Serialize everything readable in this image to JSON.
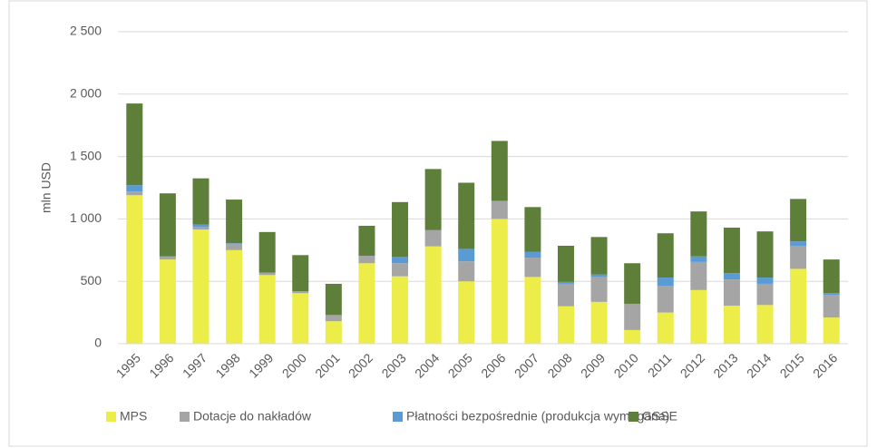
{
  "chart_data": {
    "type": "stacked_bar",
    "y_label": "mln USD",
    "categories": [
      "1995",
      "1996",
      "1997",
      "1998",
      "1999",
      "2000",
      "2001",
      "2002",
      "2003",
      "2004",
      "2005",
      "2006",
      "2007",
      "2008",
      "2009",
      "2010",
      "2011",
      "2012",
      "2013",
      "2014",
      "2015",
      "2016"
    ],
    "series": [
      {
        "name": "MPS",
        "color": "#eded4a",
        "values": [
          1190,
          675,
          915,
          750,
          550,
          405,
          180,
          645,
          540,
          780,
          500,
          1000,
          535,
          300,
          335,
          110,
          250,
          430,
          305,
          310,
          600,
          210
        ]
      },
      {
        "name": "Dotacje do nakładów",
        "color": "#a5a5a5",
        "values": [
          30,
          20,
          20,
          50,
          20,
          15,
          50,
          60,
          105,
          130,
          160,
          145,
          155,
          180,
          200,
          210,
          215,
          225,
          210,
          170,
          185,
          180
        ]
      },
      {
        "name": "Płatności bezpośrednie (produkcja wymagana)",
        "color": "#5b9bd5",
        "values": [
          50,
          5,
          20,
          5,
          0,
          0,
          0,
          0,
          50,
          0,
          100,
          0,
          45,
          15,
          20,
          0,
          65,
          45,
          50,
          50,
          35,
          15
        ]
      },
      {
        "name": "GSSE",
        "color": "#5e7f3a",
        "values": [
          655,
          505,
          370,
          350,
          325,
          290,
          250,
          240,
          440,
          490,
          530,
          480,
          360,
          290,
          300,
          325,
          355,
          360,
          365,
          370,
          340,
          270
        ]
      }
    ],
    "ylim": [
      0,
      2500
    ],
    "yticks": [
      0,
      500,
      {
        "value": 1000,
        "label": "1 000"
      },
      {
        "value": 1500,
        "label": "1 500"
      },
      {
        "value": 2000,
        "label": "2 000"
      },
      {
        "value": 2500,
        "label": "2 500"
      }
    ],
    "grid": true,
    "legend": "bottom"
  }
}
